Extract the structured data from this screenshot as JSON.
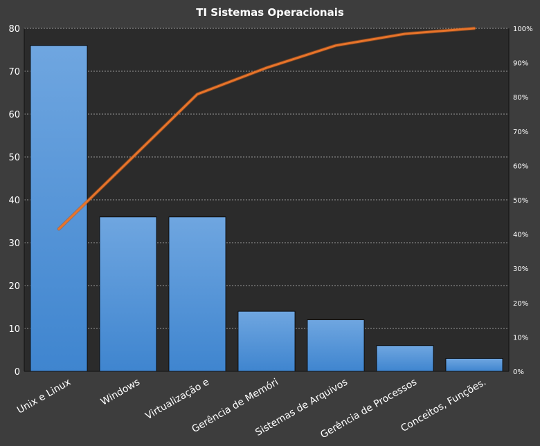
{
  "chart_data": {
    "type": "bar",
    "title": "TI Sistemas  Operacionais",
    "categories": [
      "Unix e Linux",
      "Windows",
      "Virtualização e",
      "Gerência de Memóri",
      "Sistemas de Arquivos",
      "Gerência de Processos",
      "Conceitos, Funções."
    ],
    "values": [
      76,
      36,
      36,
      14,
      12,
      6,
      3
    ],
    "ylim": [
      0,
      80
    ],
    "yticks": [
      "0",
      "10",
      "20",
      "30",
      "40",
      "50",
      "60",
      "70",
      "80"
    ],
    "secondary_type": "line",
    "secondary_values": [
      41.5,
      61.1,
      80.8,
      88.5,
      95.0,
      98.4,
      100.0
    ],
    "y2lim": [
      0,
      100
    ],
    "y2ticks": [
      "0%",
      "10%",
      "20%",
      "30%",
      "40%",
      "50%",
      "60%",
      "70%",
      "80%",
      "90%",
      "100%"
    ],
    "grid": true,
    "bar_color": "#4a90d9",
    "line_color": "#e8742a",
    "background": "#3d3d3d",
    "plot_background": "#2b2b2b"
  }
}
